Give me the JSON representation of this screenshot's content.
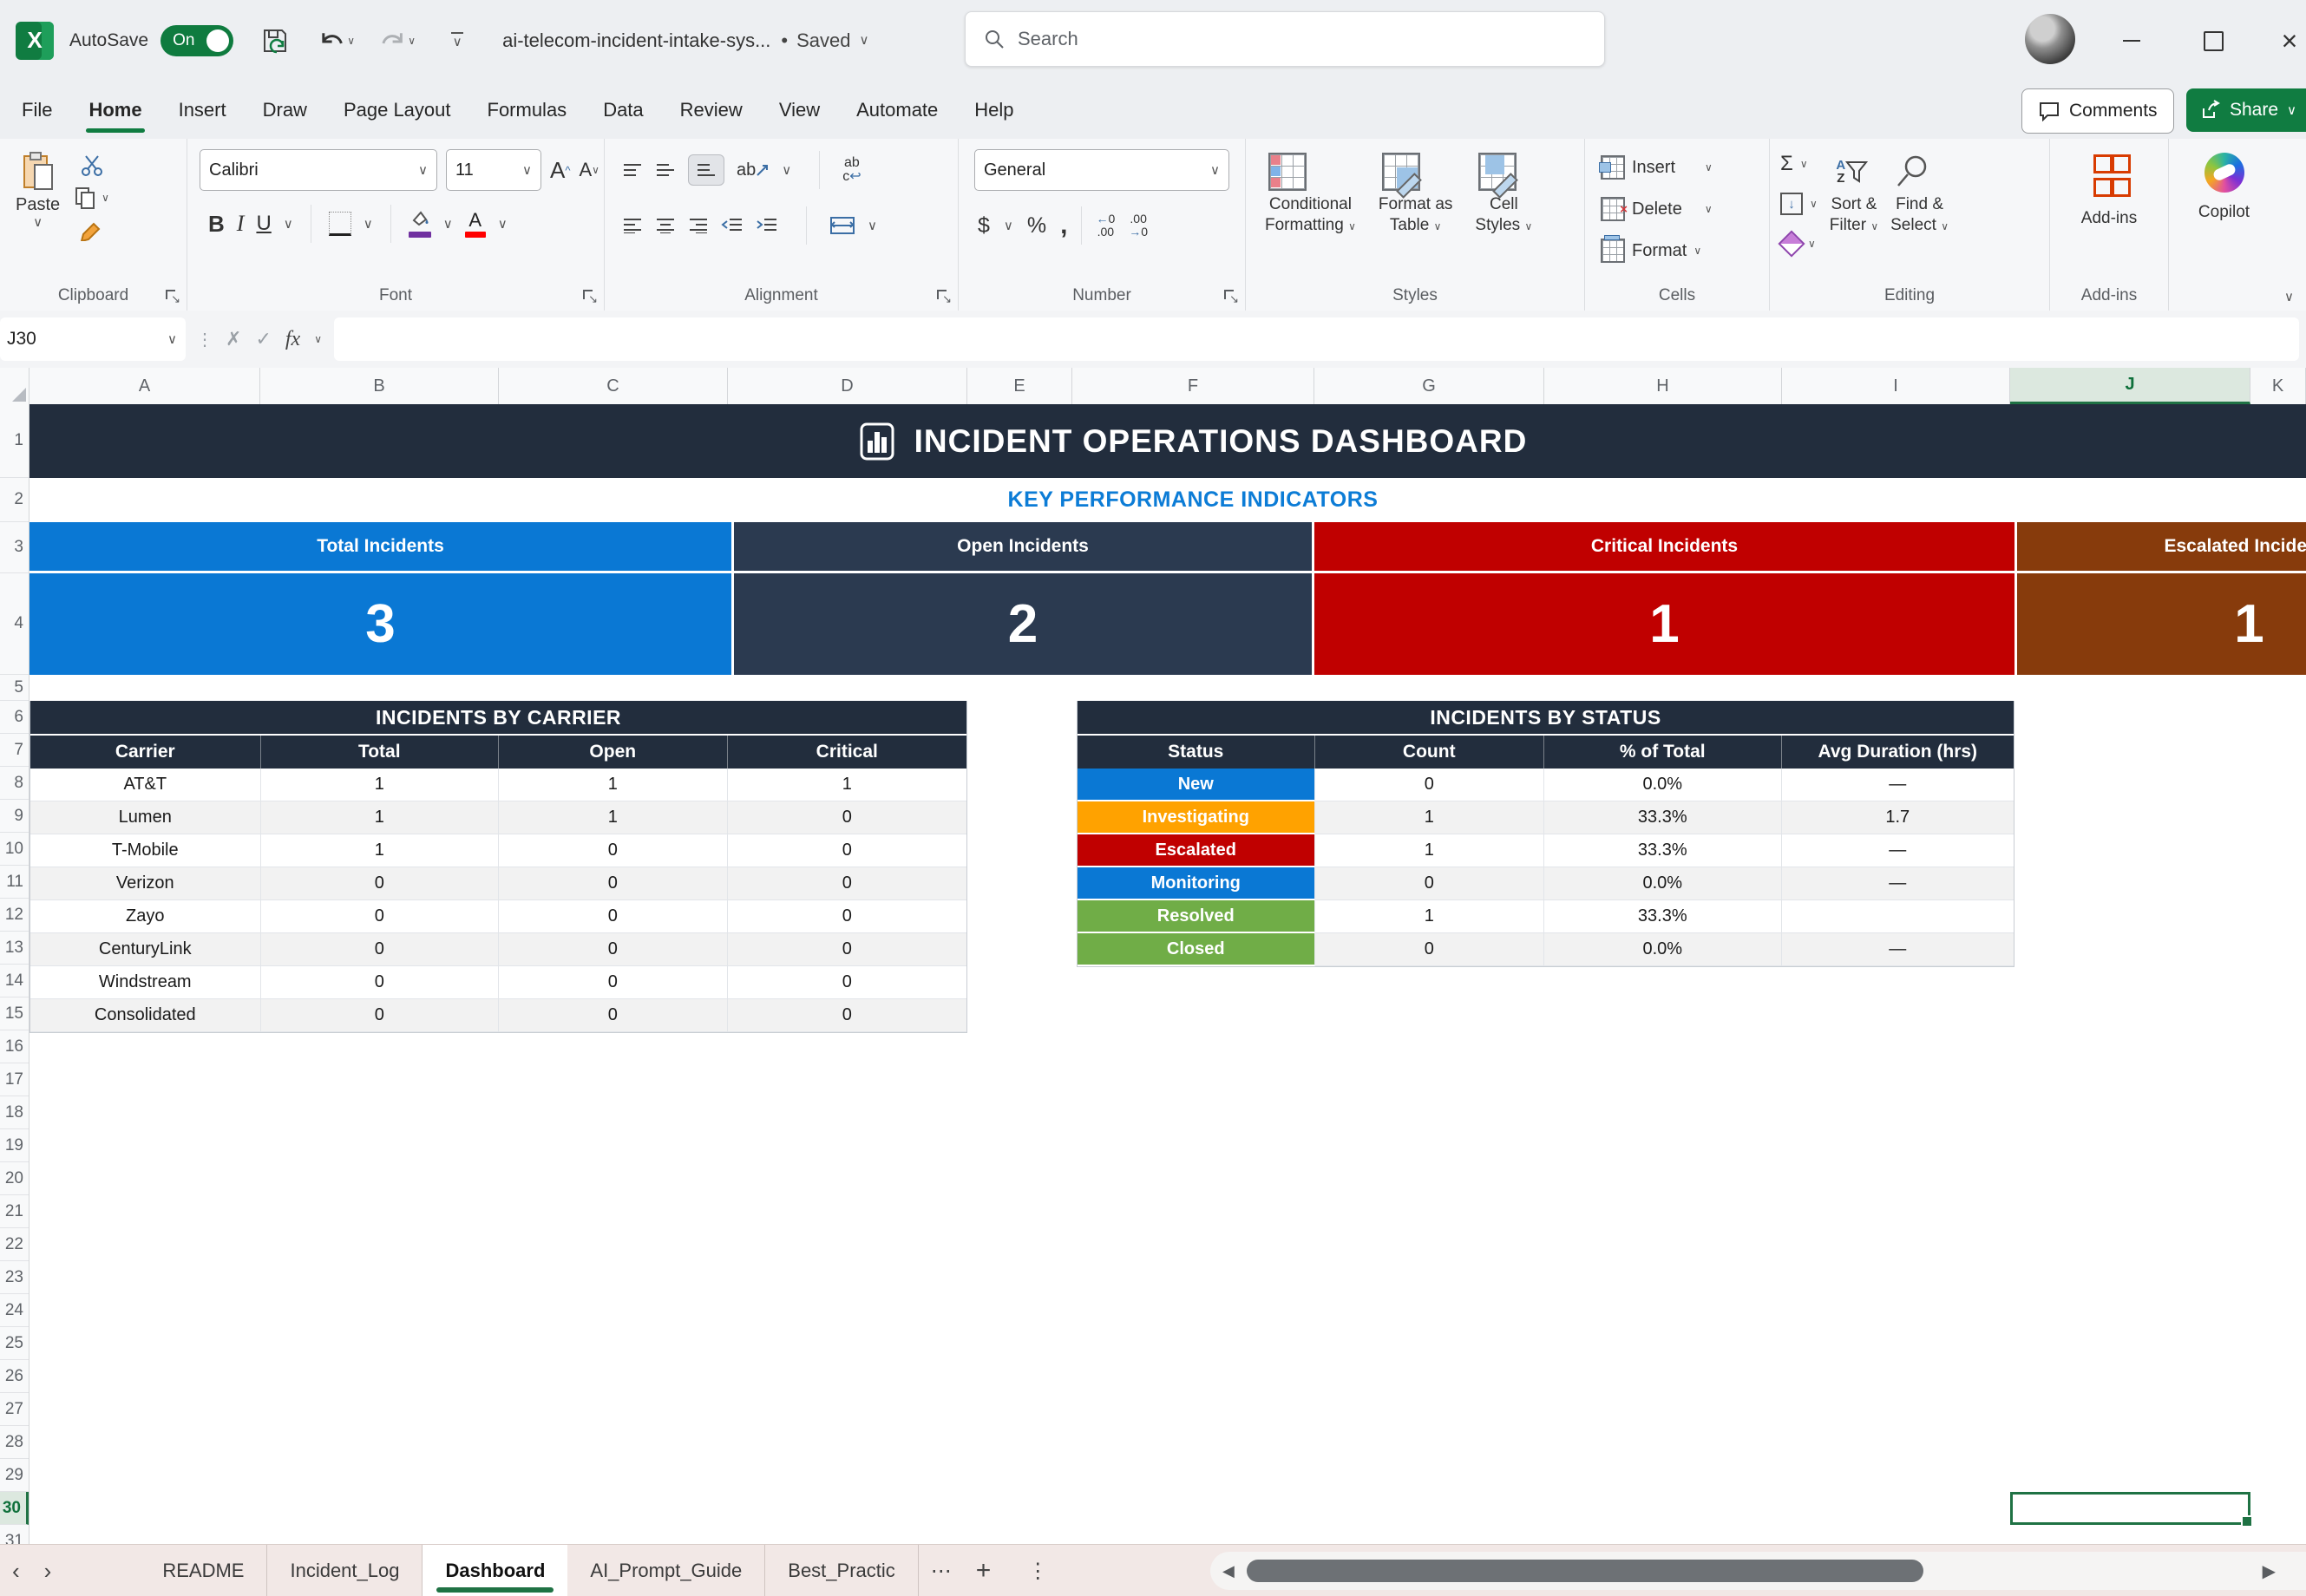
{
  "titlebar": {
    "autosave_label": "AutoSave",
    "autosave_state": "On",
    "filename": "ai-telecom-incident-intake-sys...",
    "status_separator": "•",
    "saved_status": "Saved",
    "search_placeholder": "Search"
  },
  "menubar": {
    "tabs": [
      {
        "label": "File"
      },
      {
        "label": "Home",
        "active": true
      },
      {
        "label": "Insert"
      },
      {
        "label": "Draw"
      },
      {
        "label": "Page Layout"
      },
      {
        "label": "Formulas"
      },
      {
        "label": "Data"
      },
      {
        "label": "Review"
      },
      {
        "label": "View"
      },
      {
        "label": "Automate"
      },
      {
        "label": "Help"
      }
    ],
    "comments_label": "Comments",
    "share_label": "Share"
  },
  "ribbon": {
    "paste_label": "Paste",
    "font_name": "Calibri",
    "font_size": "11",
    "number_format": "General",
    "conditional_line1": "Conditional",
    "conditional_line2": "Formatting",
    "format_table_line1": "Format as",
    "format_table_line2": "Table",
    "cell_styles_line1": "Cell",
    "cell_styles_line2": "Styles",
    "insert_label": "Insert",
    "delete_label": "Delete",
    "format_label": "Format",
    "sort_line1": "Sort &",
    "sort_line2": "Filter",
    "find_line1": "Find &",
    "find_line2": "Select",
    "addins_label": "Add-ins",
    "copilot_label": "Copilot",
    "groups": {
      "clipboard": "Clipboard",
      "font": "Font",
      "alignment": "Alignment",
      "number": "Number",
      "styles": "Styles",
      "cells": "Cells",
      "editing": "Editing",
      "addins": "Add-ins"
    }
  },
  "formula_bar": {
    "name_box": "J30",
    "fx_label": "fx",
    "formula_value": ""
  },
  "grid": {
    "columns": [
      "A",
      "B",
      "C",
      "D",
      "E",
      "F",
      "G",
      "H",
      "I",
      "J",
      "K"
    ],
    "row_count": 31,
    "active_column": "J",
    "active_row": 30,
    "active_cell": "J30"
  },
  "dashboard": {
    "title": "INCIDENT OPERATIONS DASHBOARD",
    "kpi_section_title": "KEY PERFORMANCE INDICATORS",
    "kpis": [
      {
        "label": "Total Incidents",
        "value": "3",
        "color": "#0A78D4"
      },
      {
        "label": "Open Incidents",
        "value": "2",
        "color": "#2B3A50"
      },
      {
        "label": "Critical Incidents",
        "value": "1",
        "color": "#C00000"
      },
      {
        "label": "Escalated Incidents",
        "value": "1",
        "color": "#873B0C"
      }
    ],
    "carrier_table": {
      "title": "INCIDENTS BY CARRIER",
      "headers": [
        "Carrier",
        "Total",
        "Open",
        "Critical"
      ],
      "rows": [
        {
          "carrier": "AT&T",
          "total": "1",
          "open": "1",
          "critical": "1"
        },
        {
          "carrier": "Lumen",
          "total": "1",
          "open": "1",
          "critical": "0"
        },
        {
          "carrier": "T-Mobile",
          "total": "1",
          "open": "0",
          "critical": "0"
        },
        {
          "carrier": "Verizon",
          "total": "0",
          "open": "0",
          "critical": "0"
        },
        {
          "carrier": "Zayo",
          "total": "0",
          "open": "0",
          "critical": "0"
        },
        {
          "carrier": "CenturyLink",
          "total": "0",
          "open": "0",
          "critical": "0"
        },
        {
          "carrier": "Windstream",
          "total": "0",
          "open": "0",
          "critical": "0"
        },
        {
          "carrier": "Consolidated",
          "total": "0",
          "open": "0",
          "critical": "0"
        }
      ]
    },
    "status_table": {
      "title": "INCIDENTS BY STATUS",
      "headers": [
        "Status",
        "Count",
        "% of Total",
        "Avg Duration (hrs)"
      ],
      "rows": [
        {
          "status": "New",
          "color": "#0A78D4",
          "count": "0",
          "pct": "0.0%",
          "avg": "—"
        },
        {
          "status": "Investigating",
          "color": "#FFA200",
          "count": "1",
          "pct": "33.3%",
          "avg": "1.7"
        },
        {
          "status": "Escalated",
          "color": "#C00000",
          "count": "1",
          "pct": "33.3%",
          "avg": "—"
        },
        {
          "status": "Monitoring",
          "color": "#0A78D4",
          "count": "0",
          "pct": "0.0%",
          "avg": "—"
        },
        {
          "status": "Resolved",
          "color": "#70AD47",
          "count": "1",
          "pct": "33.3%",
          "avg": ""
        },
        {
          "status": "Closed",
          "color": "#70AD47",
          "count": "0",
          "pct": "0.0%",
          "avg": "—"
        }
      ]
    }
  },
  "sheet_tabs": {
    "tabs": [
      {
        "label": "README"
      },
      {
        "label": "Incident_Log"
      },
      {
        "label": "Dashboard",
        "active": true
      },
      {
        "label": "AI_Prompt_Guide"
      },
      {
        "label": "Best_Practic"
      }
    ],
    "overflow_indicator": "⋯"
  }
}
